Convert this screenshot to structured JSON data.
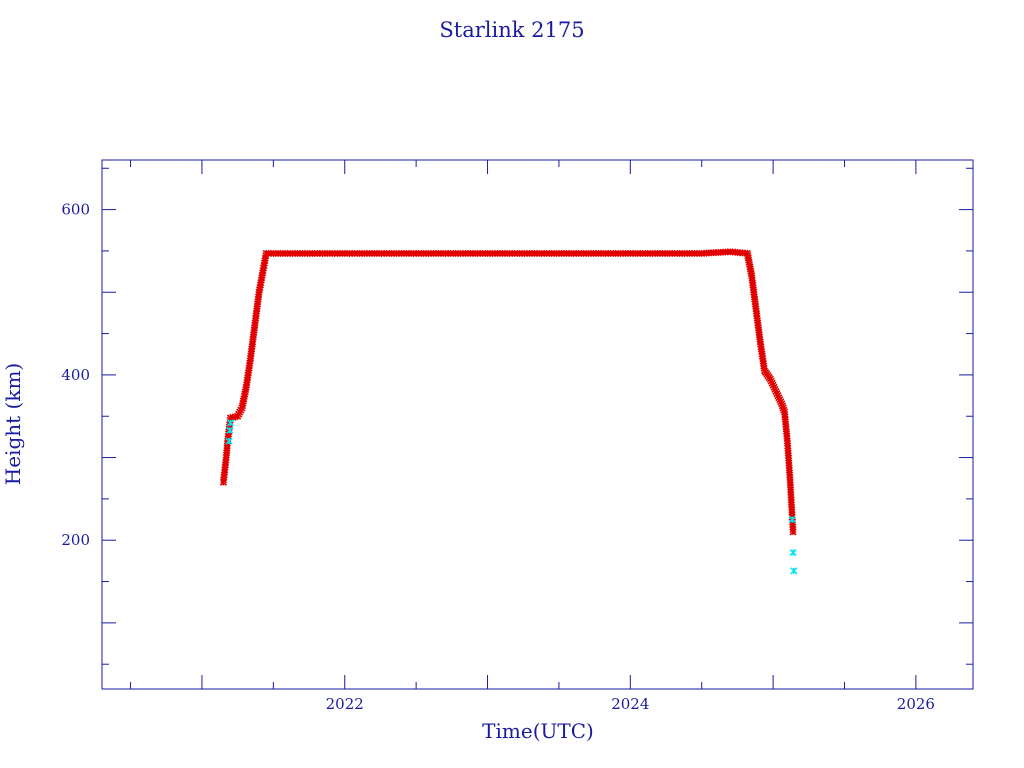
{
  "colors": {
    "axis": "#1a1aa0",
    "series_main": "#e00000",
    "series_alt": "#00e5ee",
    "background": "#ffffff"
  },
  "chart_data": {
    "type": "scatter",
    "title": "Starlink 2175",
    "xlabel": "Time(UTC)",
    "ylabel": "Height (km)",
    "x_ticks": [
      "2022",
      "2024",
      "2026"
    ],
    "y_ticks": [
      "200",
      "400",
      "600"
    ],
    "xlim": [
      2020.3,
      2026.4
    ],
    "ylim": [
      20,
      660
    ],
    "grid": false,
    "legend": "none",
    "series": [
      {
        "color": "#e00000",
        "points": [
          [
            2021.15,
            270
          ],
          [
            2021.16,
            285
          ],
          [
            2021.17,
            300
          ],
          [
            2021.18,
            320
          ],
          [
            2021.2,
            348
          ],
          [
            2021.25,
            350
          ],
          [
            2021.28,
            360
          ],
          [
            2021.31,
            385
          ],
          [
            2021.34,
            420
          ],
          [
            2021.37,
            460
          ],
          [
            2021.4,
            500
          ],
          [
            2021.45,
            547
          ],
          [
            2021.6,
            547
          ],
          [
            2022.0,
            547
          ],
          [
            2022.5,
            547
          ],
          [
            2023.0,
            547
          ],
          [
            2023.5,
            547
          ],
          [
            2024.0,
            547
          ],
          [
            2024.5,
            547
          ],
          [
            2024.7,
            549
          ],
          [
            2024.82,
            547
          ],
          [
            2024.85,
            520
          ],
          [
            2024.88,
            480
          ],
          [
            2024.91,
            440
          ],
          [
            2024.94,
            405
          ],
          [
            2024.98,
            395
          ],
          [
            2025.02,
            380
          ],
          [
            2025.06,
            365
          ],
          [
            2025.08,
            355
          ],
          [
            2025.1,
            320
          ],
          [
            2025.12,
            270
          ],
          [
            2025.13,
            240
          ],
          [
            2025.14,
            210
          ]
        ]
      },
      {
        "color": "#00e5ee",
        "points": [
          [
            2021.19,
            320
          ],
          [
            2021.195,
            333
          ],
          [
            2021.2,
            342
          ],
          [
            2025.135,
            225
          ],
          [
            2025.14,
            185
          ],
          [
            2025.145,
            163
          ]
        ]
      }
    ]
  }
}
